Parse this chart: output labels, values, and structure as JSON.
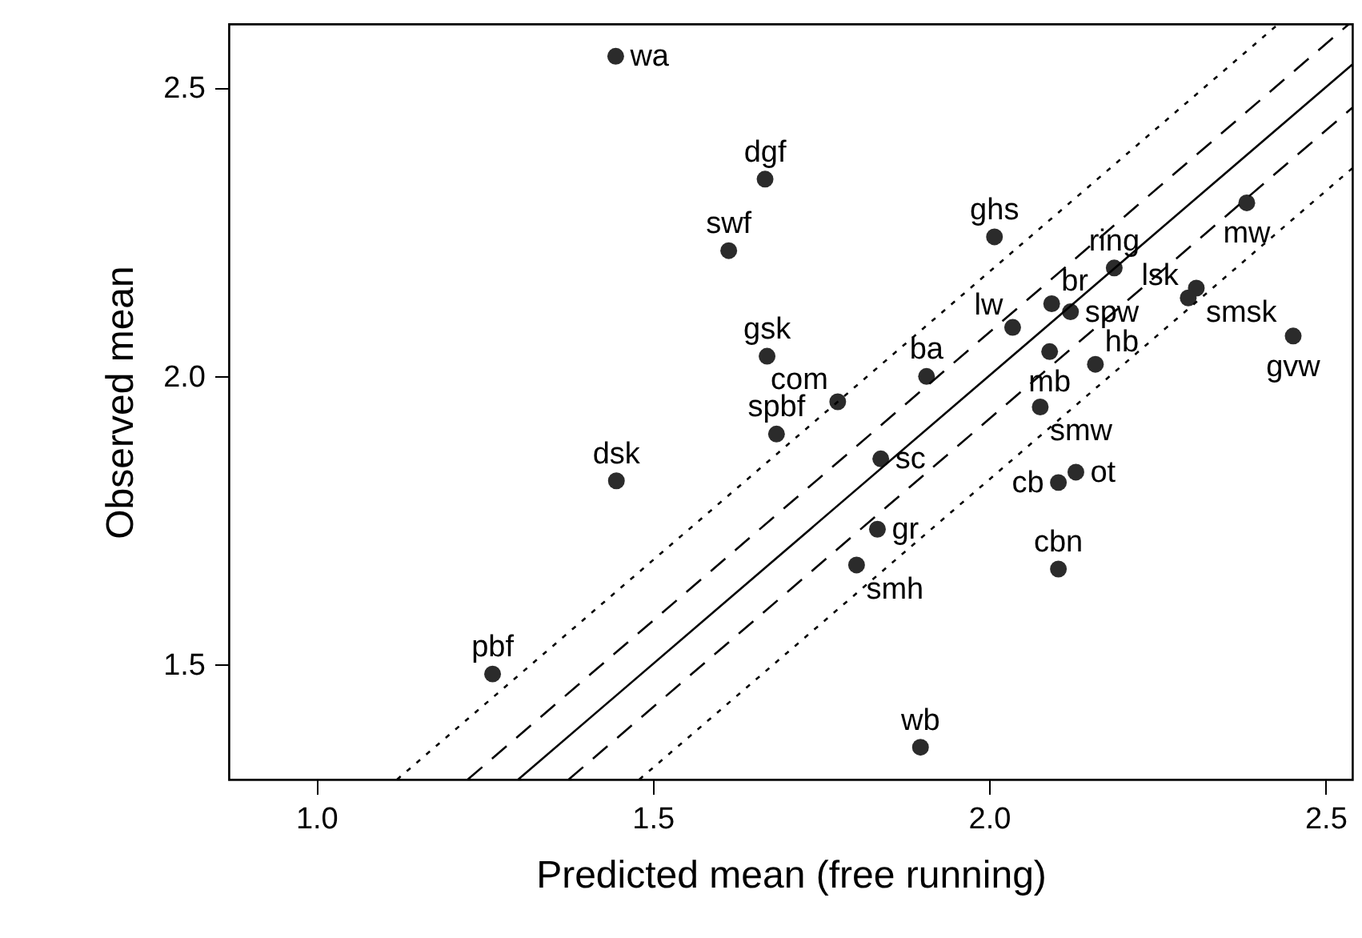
{
  "chart_data": {
    "type": "scatter",
    "xlabel": "Predicted mean (free running)",
    "ylabel": "Observed mean",
    "xlim": [
      0.87,
      2.54
    ],
    "ylim": [
      1.3,
      2.61
    ],
    "xticks": [
      {
        "value": 1,
        "label": "1.0"
      },
      1.5,
      {
        "value": 2,
        "label": "2.0"
      },
      2.5
    ],
    "yticks": [
      1.5,
      {
        "value": 2,
        "label": "2.0"
      },
      2.5
    ],
    "grid": false,
    "marker": "circle",
    "series": [
      {
        "type": "scatter",
        "color": "#2b2b2b",
        "x": [
          1.445,
          1.667,
          1.613,
          1.67,
          1.775,
          1.684,
          1.446,
          1.262,
          1.907,
          1.839,
          1.834,
          1.803,
          1.898,
          2.008,
          2.035,
          2.093,
          2.121,
          2.09,
          2.076,
          2.186,
          2.158,
          2.103,
          2.129,
          2.103,
          2.308,
          2.296,
          2.383,
          2.452
        ],
        "values": [
          2.554,
          2.341,
          2.217,
          2.034,
          1.955,
          1.899,
          1.818,
          1.483,
          1.999,
          1.856,
          1.734,
          1.672,
          1.356,
          2.241,
          2.084,
          2.125,
          2.111,
          2.042,
          1.946,
          2.187,
          2.02,
          1.815,
          1.833,
          1.665,
          2.152,
          2.135,
          2.3,
          2.069
        ]
      },
      {
        "type": "line",
        "color": "#000000",
        "line_style": "solid",
        "marker": "none",
        "x": [
          1.3,
          2.54
        ],
        "values": [
          1.3,
          2.54
        ]
      },
      {
        "type": "line",
        "color": "#000000",
        "line_style": "dashed",
        "marker": "none",
        "x": [
          1.225,
          2.535
        ],
        "values": [
          1.3,
          2.61
        ]
      },
      {
        "type": "line",
        "color": "#000000",
        "line_style": "dashed",
        "marker": "none",
        "x": [
          1.375,
          2.54
        ],
        "values": [
          1.3,
          2.465
        ]
      },
      {
        "type": "line",
        "color": "#000000",
        "line_style": "dotted",
        "marker": "none",
        "x": [
          1.12,
          2.43
        ],
        "values": [
          1.3,
          2.61
        ]
      },
      {
        "type": "line",
        "color": "#000000",
        "line_style": "dotted",
        "marker": "none",
        "x": [
          1.48,
          2.54
        ],
        "values": [
          1.3,
          2.36
        ]
      }
    ],
    "annotations": [
      {
        "text": "wa",
        "x": 1.445,
        "y": 2.554
      },
      {
        "text": "dgf",
        "x": 1.667,
        "y": 2.341
      },
      {
        "text": "swf",
        "x": 1.613,
        "y": 2.217
      },
      {
        "text": "gsk",
        "x": 1.67,
        "y": 2.034
      },
      {
        "text": "com",
        "x": 1.775,
        "y": 1.955
      },
      {
        "text": "spbf",
        "x": 1.684,
        "y": 1.899
      },
      {
        "text": "dsk",
        "x": 1.446,
        "y": 1.818
      },
      {
        "text": "pbf",
        "x": 1.262,
        "y": 1.483
      },
      {
        "text": "ba",
        "x": 1.907,
        "y": 1.999
      },
      {
        "text": "sc",
        "x": 1.839,
        "y": 1.856
      },
      {
        "text": "gr",
        "x": 1.834,
        "y": 1.734
      },
      {
        "text": "smh",
        "x": 1.803,
        "y": 1.672
      },
      {
        "text": "wb",
        "x": 1.898,
        "y": 1.356
      },
      {
        "text": "ghs",
        "x": 2.008,
        "y": 2.241
      },
      {
        "text": "lw",
        "x": 2.035,
        "y": 2.084
      },
      {
        "text": "br",
        "x": 2.093,
        "y": 2.125
      },
      {
        "text": "spw",
        "x": 2.121,
        "y": 2.111
      },
      {
        "text": "mb",
        "x": 2.09,
        "y": 2.042
      },
      {
        "text": "smw",
        "x": 2.076,
        "y": 1.946
      },
      {
        "text": "ring",
        "x": 2.186,
        "y": 2.187
      },
      {
        "text": "hb",
        "x": 2.158,
        "y": 2.02
      },
      {
        "text": "cb",
        "x": 2.103,
        "y": 1.815
      },
      {
        "text": "ot",
        "x": 2.129,
        "y": 1.833
      },
      {
        "text": "cbn",
        "x": 2.103,
        "y": 1.665
      },
      {
        "text": "smsk",
        "x": 2.308,
        "y": 2.152
      },
      {
        "text": "lsk",
        "x": 2.296,
        "y": 2.135
      },
      {
        "text": "mw",
        "x": 2.383,
        "y": 2.3
      },
      {
        "text": "gvw",
        "x": 2.452,
        "y": 2.069
      }
    ]
  }
}
